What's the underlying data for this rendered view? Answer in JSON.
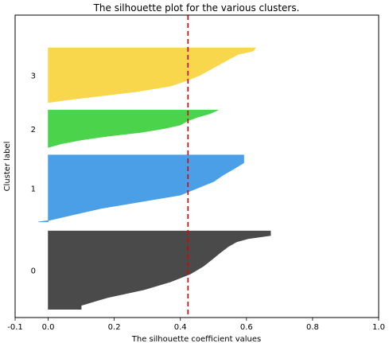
{
  "chart_data": {
    "type": "area",
    "title": "The silhouette plot for the various clusters.",
    "xlabel": "The silhouette coefficient values",
    "ylabel": "Cluster label",
    "xlim": [
      -0.1,
      1.0
    ],
    "xticks": [
      "-0.1",
      "0.0",
      "0.2",
      "0.4",
      "0.6",
      "0.8",
      "1.0"
    ],
    "xtick_values": [
      -0.1,
      0.0,
      0.2,
      0.4,
      0.6,
      0.8,
      1.0
    ],
    "grid": false,
    "average_silhouette": 0.423,
    "ylim": [
      0,
      370
    ],
    "clusters": [
      {
        "label": "0",
        "color": "#4a4a4a",
        "y_range": [
          10,
          106
        ],
        "profile": [
          [
            0,
            0.673
          ],
          [
            0.06,
            0.673
          ],
          [
            0.1,
            0.605
          ],
          [
            0.14,
            0.57
          ],
          [
            0.2,
            0.545
          ],
          [
            0.28,
            0.52
          ],
          [
            0.35,
            0.5
          ],
          [
            0.45,
            0.47
          ],
          [
            0.55,
            0.43
          ],
          [
            0.65,
            0.37
          ],
          [
            0.75,
            0.29
          ],
          [
            0.85,
            0.18
          ],
          [
            0.95,
            0.1
          ],
          [
            1.0,
            0.1
          ]
        ]
      },
      {
        "label": "1",
        "color": "#4a9fe6",
        "y_range": [
          117,
          199
        ],
        "profile": [
          [
            0,
            0.592
          ],
          [
            0.12,
            0.592
          ],
          [
            0.2,
            0.565
          ],
          [
            0.3,
            0.53
          ],
          [
            0.4,
            0.5
          ],
          [
            0.5,
            0.45
          ],
          [
            0.6,
            0.4
          ],
          [
            0.7,
            0.28
          ],
          [
            0.8,
            0.16
          ],
          [
            0.9,
            0.07
          ],
          [
            0.98,
            0.0
          ],
          [
            1.0,
            -0.03
          ]
        ]
      },
      {
        "label": "2",
        "color": "#4cd34c",
        "y_range": [
          208,
          254
        ],
        "profile": [
          [
            0,
            0.515
          ],
          [
            0.1,
            0.49
          ],
          [
            0.2,
            0.45
          ],
          [
            0.3,
            0.42
          ],
          [
            0.4,
            0.4
          ],
          [
            0.5,
            0.35
          ],
          [
            0.6,
            0.28
          ],
          [
            0.7,
            0.18
          ],
          [
            0.8,
            0.1
          ],
          [
            0.9,
            0.04
          ],
          [
            1.0,
            0.0
          ]
        ]
      },
      {
        "label": "3",
        "color": "#f9d74d",
        "y_range": [
          263,
          330
        ],
        "profile": [
          [
            0,
            0.628
          ],
          [
            0.06,
            0.62
          ],
          [
            0.12,
            0.575
          ],
          [
            0.2,
            0.55
          ],
          [
            0.3,
            0.52
          ],
          [
            0.4,
            0.49
          ],
          [
            0.5,
            0.46
          ],
          [
            0.6,
            0.42
          ],
          [
            0.7,
            0.37
          ],
          [
            0.8,
            0.27
          ],
          [
            0.9,
            0.13
          ],
          [
            0.96,
            0.05
          ],
          [
            1.0,
            0.0
          ]
        ]
      }
    ]
  }
}
